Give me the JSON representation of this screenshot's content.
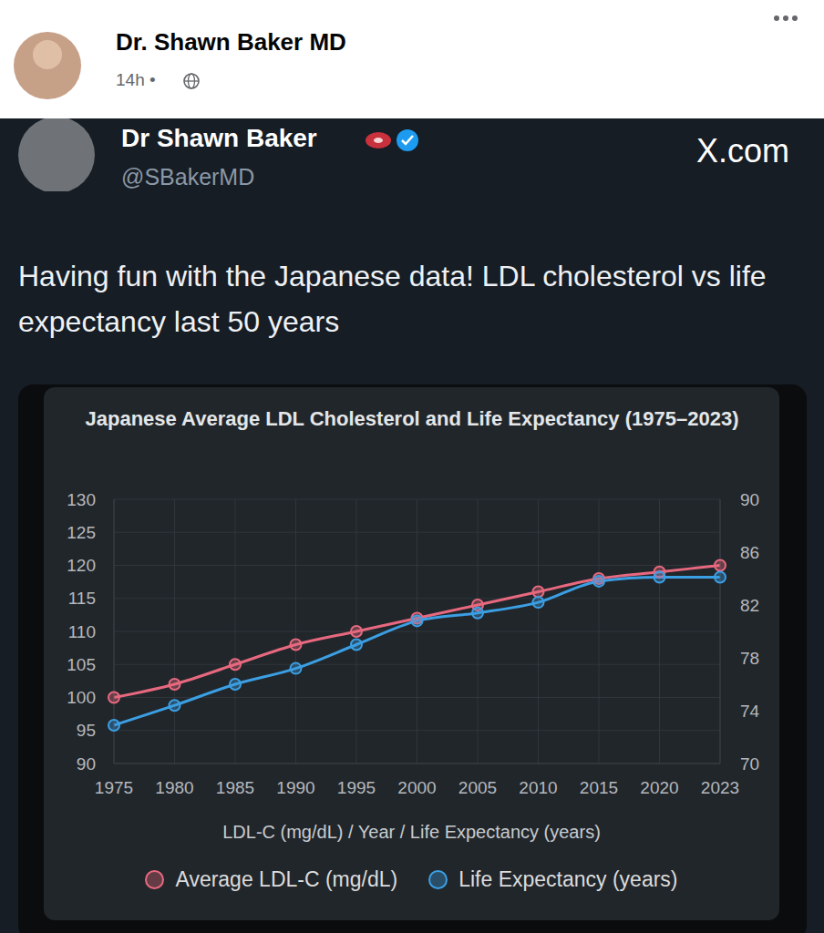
{
  "post": {
    "author": "Dr. Shawn Baker MD",
    "time": "14h •"
  },
  "tweet": {
    "name": "Dr Shawn Baker",
    "handle": "@SBakerMD",
    "source": "X.com",
    "text": "Having fun with the Japanese data! LDL cholesterol vs life expectancy last 50 years"
  },
  "chart_data": {
    "type": "line",
    "title": "Japanese Average LDL Cholesterol and Life Expectancy (1975–2023)",
    "xlabel": "LDL-C (mg/dL) / Year / Life Expectancy (years)",
    "categories": [
      "1975",
      "1980",
      "1985",
      "1990",
      "1995",
      "2000",
      "2005",
      "2010",
      "2015",
      "2020",
      "2023"
    ],
    "series": [
      {
        "name": "Average LDL-C (mg/dL)",
        "color": "#e8697f",
        "marker": "circle",
        "values": [
          100,
          102,
          105,
          108,
          110,
          112,
          114,
          116,
          118,
          119,
          120
        ]
      },
      {
        "name": "Life Expectancy (years)",
        "color": "#3b9fe3",
        "marker": "circle",
        "axis": "y2",
        "values": [
          72.9,
          74.4,
          76.0,
          77.2,
          79.0,
          80.8,
          81.4,
          82.2,
          83.8,
          84.1,
          84.1
        ]
      }
    ],
    "ylim": [
      90,
      130
    ],
    "yticks": [
      90,
      95,
      100,
      105,
      110,
      115,
      120,
      125,
      130
    ],
    "y2lim": [
      70,
      90
    ],
    "y2ticks": [
      70,
      74,
      78,
      82,
      86,
      90
    ],
    "grid": true,
    "legend": "bottom"
  }
}
